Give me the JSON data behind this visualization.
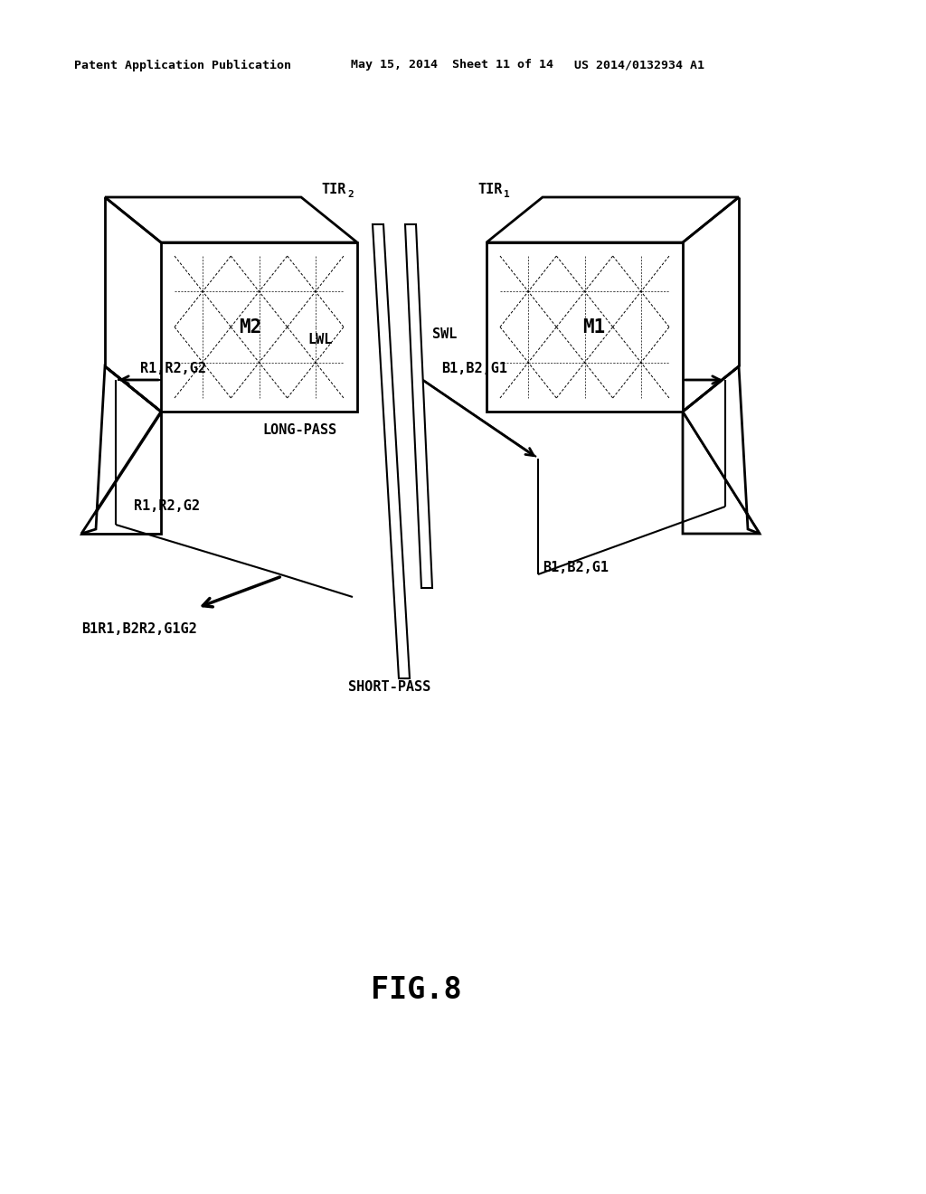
{
  "background_color": "#ffffff",
  "header_text": "Patent Application Publication",
  "header_date": "May 15, 2014  Sheet 11 of 14",
  "header_patent": "US 2014/0132934 A1",
  "fig_label": "FIG.8",
  "label_fontsize": 11,
  "fig_label_fontsize": 24
}
